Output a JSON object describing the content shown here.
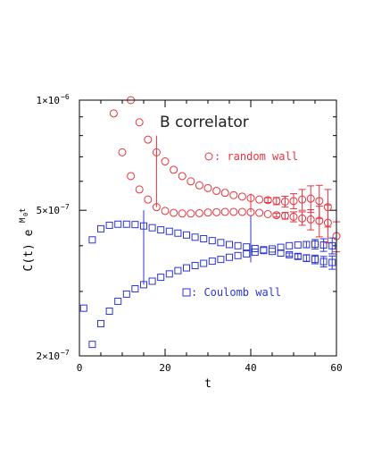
{
  "chart_data": {
    "type": "scatter",
    "title": "B correlator",
    "xlabel": "t",
    "ylabel": "C(t) e",
    "ylabel_superscript": "M",
    "ylabel_superscript_sub": "0",
    "ylabel_superscript_tail": " t",
    "x_scale": "linear",
    "y_scale": "log",
    "xlim": [
      0,
      60
    ],
    "ylim": [
      2e-07,
      1e-06
    ],
    "x_ticks": [
      {
        "value": 0,
        "label": "0"
      },
      {
        "value": 20,
        "label": "20"
      },
      {
        "value": 40,
        "label": "40"
      },
      {
        "value": 60,
        "label": "60"
      }
    ],
    "y_ticks_major": [
      {
        "value": 1e-06,
        "mantissa": "1×10",
        "exp": "−6"
      },
      {
        "value": 5e-07,
        "mantissa": "5×10",
        "exp": "−7"
      },
      {
        "value": 2e-07,
        "mantissa": "2×10",
        "exp": "−7"
      }
    ],
    "y_ticks_minor": [
      3e-07,
      4e-07,
      6e-07,
      7e-07,
      8e-07,
      9e-07
    ],
    "legend_placement": "inline",
    "series": [
      {
        "name": "random wall",
        "legend_label": "random wall",
        "marker": "circle",
        "color": "#e8323c",
        "points": [
          [
            8,
            9.2e-07
          ],
          [
            10,
            7.2e-07
          ],
          [
            12,
            6.2e-07
          ],
          [
            14,
            5.7e-07
          ],
          [
            16,
            5.35e-07
          ],
          [
            18,
            5.1e-07
          ],
          [
            20,
            4.98e-07
          ],
          [
            22,
            4.92e-07
          ],
          [
            24,
            4.9e-07
          ],
          [
            26,
            4.9e-07
          ],
          [
            28,
            4.91e-07
          ],
          [
            30,
            4.93e-07
          ],
          [
            32,
            4.94e-07
          ],
          [
            34,
            4.95e-07
          ],
          [
            36,
            4.95e-07
          ],
          [
            38,
            4.95e-07
          ],
          [
            40,
            4.94e-07
          ],
          [
            42,
            4.92e-07
          ],
          [
            44,
            4.88e-07
          ],
          [
            46,
            4.85e-07
          ],
          [
            48,
            4.83e-07
          ],
          [
            50,
            4.8e-07
          ],
          [
            52,
            4.75e-07
          ],
          [
            54,
            4.72e-07
          ],
          [
            56,
            4.68e-07
          ],
          [
            58,
            4.62e-07
          ],
          [
            60,
            4.25e-07
          ],
          [
            12,
            1e-06
          ],
          [
            14,
            8.7e-07
          ],
          [
            16,
            7.8e-07
          ],
          [
            18,
            7.2e-07
          ],
          [
            20,
            6.8e-07
          ],
          [
            22,
            6.45e-07
          ],
          [
            24,
            6.2e-07
          ],
          [
            26,
            6e-07
          ],
          [
            28,
            5.85e-07
          ],
          [
            30,
            5.75e-07
          ],
          [
            32,
            5.65e-07
          ],
          [
            34,
            5.58e-07
          ],
          [
            36,
            5.5e-07
          ],
          [
            38,
            5.45e-07
          ],
          [
            40,
            5.4e-07
          ],
          [
            42,
            5.35e-07
          ],
          [
            44,
            5.33e-07
          ],
          [
            46,
            5.3e-07
          ],
          [
            48,
            5.28e-07
          ],
          [
            50,
            5.3e-07
          ],
          [
            52,
            5.35e-07
          ],
          [
            54,
            5.38e-07
          ],
          [
            56,
            5.3e-07
          ],
          [
            58,
            5.1e-07
          ]
        ],
        "error_bars": [
          [
            46,
            4.85e-07,
            6e-09
          ],
          [
            48,
            4.83e-07,
            1e-08
          ],
          [
            50,
            4.8e-07,
            1.5e-08
          ],
          [
            52,
            4.75e-07,
            2e-08
          ],
          [
            54,
            4.72e-07,
            3e-08
          ],
          [
            56,
            4.68e-07,
            4.5e-08
          ],
          [
            58,
            4.62e-07,
            5.5e-08
          ],
          [
            60,
            4.25e-07,
            4e-08
          ],
          [
            44,
            5.33e-07,
            8e-09
          ],
          [
            46,
            5.3e-07,
            1.2e-08
          ],
          [
            48,
            5.28e-07,
            1.8e-08
          ],
          [
            50,
            5.3e-07,
            2.5e-08
          ],
          [
            52,
            5.35e-07,
            3.5e-08
          ],
          [
            54,
            5.38e-07,
            4.5e-08
          ],
          [
            56,
            5.3e-07,
            5.5e-08
          ],
          [
            58,
            5.1e-07,
            6e-08
          ]
        ]
      },
      {
        "name": "Coulomb wall",
        "legend_label": "Coulomb wall",
        "marker": "square",
        "color": "#2b35d8",
        "points": [
          [
            1,
            2.7e-07
          ],
          [
            3,
            4.15e-07
          ],
          [
            5,
            4.45e-07
          ],
          [
            7,
            4.55e-07
          ],
          [
            9,
            4.58e-07
          ],
          [
            11,
            4.58e-07
          ],
          [
            13,
            4.57e-07
          ],
          [
            15,
            4.53e-07
          ],
          [
            17,
            4.48e-07
          ],
          [
            19,
            4.42e-07
          ],
          [
            21,
            4.38e-07
          ],
          [
            23,
            4.33e-07
          ],
          [
            25,
            4.28e-07
          ],
          [
            27,
            4.22e-07
          ],
          [
            29,
            4.18e-07
          ],
          [
            31,
            4.13e-07
          ],
          [
            33,
            4.08e-07
          ],
          [
            35,
            4.03e-07
          ],
          [
            37,
            4e-07
          ],
          [
            39,
            3.97e-07
          ],
          [
            41,
            3.93e-07
          ],
          [
            43,
            3.9e-07
          ],
          [
            45,
            3.86e-07
          ],
          [
            47,
            3.82e-07
          ],
          [
            49,
            3.78e-07
          ],
          [
            51,
            3.74e-07
          ],
          [
            53,
            3.7e-07
          ],
          [
            55,
            3.67e-07
          ],
          [
            57,
            3.62e-07
          ],
          [
            59,
            3.6e-07
          ],
          [
            3,
            2.15e-07
          ],
          [
            5,
            2.45e-07
          ],
          [
            7,
            2.65e-07
          ],
          [
            9,
            2.82e-07
          ],
          [
            11,
            2.95e-07
          ],
          [
            13,
            3.05e-07
          ],
          [
            15,
            3.13e-07
          ],
          [
            17,
            3.2e-07
          ],
          [
            19,
            3.28e-07
          ],
          [
            21,
            3.35e-07
          ],
          [
            23,
            3.42e-07
          ],
          [
            25,
            3.48e-07
          ],
          [
            27,
            3.53e-07
          ],
          [
            29,
            3.58e-07
          ],
          [
            31,
            3.63e-07
          ],
          [
            33,
            3.67e-07
          ],
          [
            35,
            3.72e-07
          ],
          [
            37,
            3.76e-07
          ],
          [
            39,
            3.8e-07
          ],
          [
            41,
            3.84e-07
          ],
          [
            43,
            3.88e-07
          ],
          [
            45,
            3.92e-07
          ],
          [
            47,
            3.96e-07
          ],
          [
            49,
            4e-07
          ],
          [
            51,
            4.02e-07
          ],
          [
            53,
            4.03e-07
          ],
          [
            55,
            4.04e-07
          ],
          [
            57,
            4.02e-07
          ],
          [
            59,
            4e-07
          ]
        ],
        "error_bars": [
          [
            49,
            3.78e-07,
            4e-09
          ],
          [
            51,
            3.74e-07,
            6e-09
          ],
          [
            53,
            3.7e-07,
            8e-09
          ],
          [
            55,
            3.67e-07,
            1e-08
          ],
          [
            57,
            3.62e-07,
            1.2e-08
          ],
          [
            59,
            3.6e-07,
            1.5e-08
          ],
          [
            53,
            4.03e-07,
            8e-09
          ],
          [
            55,
            4.04e-07,
            1.2e-08
          ],
          [
            57,
            4.02e-07,
            1.6e-08
          ],
          [
            59,
            4e-07,
            2e-08
          ]
        ]
      }
    ],
    "fit_ranges": [
      {
        "series": "random wall",
        "x": 18,
        "y_from": 5.1e-07,
        "y_to": 8e-07
      },
      {
        "series": "random wall",
        "x": 40,
        "y_from": 4.94e-07,
        "y_to": 5.55e-07
      },
      {
        "series": "Coulomb wall",
        "x": 15,
        "y_from": 3.13e-07,
        "y_to": 5e-07
      },
      {
        "series": "Coulomb wall",
        "x": 40,
        "y_from": 3.6e-07,
        "y_to": 4.85e-07
      }
    ]
  }
}
